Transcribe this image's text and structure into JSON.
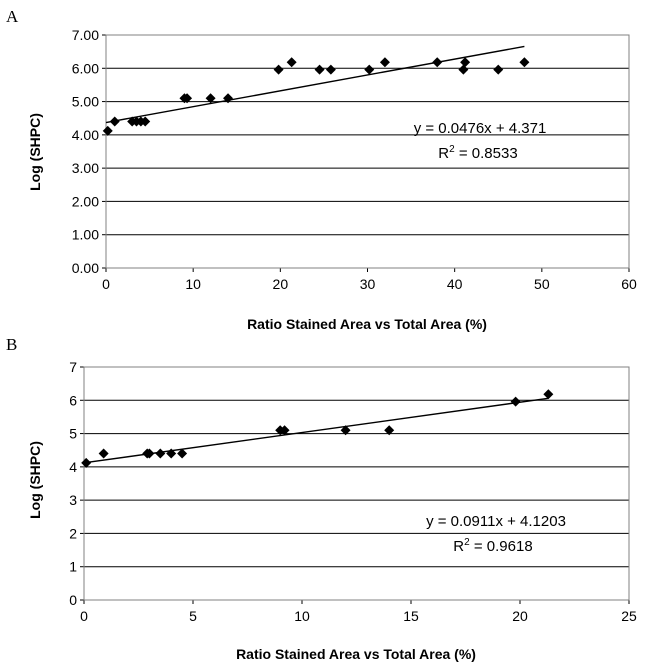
{
  "chart_data": [
    {
      "type": "scatter",
      "panel_label": "A",
      "xlabel": "Ratio Stained Area vs Total Area (%)",
      "ylabel": "Log (SHPC)",
      "xlim": [
        0,
        60
      ],
      "ylim": [
        0,
        7
      ],
      "x_ticks": [
        "0",
        "10",
        "20",
        "30",
        "40",
        "50",
        "60"
      ],
      "y_ticks": [
        "0.00",
        "1.00",
        "2.00",
        "3.00",
        "4.00",
        "5.00",
        "6.00",
        "7.00"
      ],
      "grid": "horizontal",
      "points": [
        [
          0.2,
          4.12
        ],
        [
          1.0,
          4.4
        ],
        [
          3.0,
          4.4
        ],
        [
          3.5,
          4.4
        ],
        [
          4.0,
          4.4
        ],
        [
          4.5,
          4.4
        ],
        [
          9.0,
          5.1
        ],
        [
          9.3,
          5.1
        ],
        [
          12.0,
          5.1
        ],
        [
          14.0,
          5.1
        ],
        [
          19.8,
          5.96
        ],
        [
          21.3,
          6.18
        ],
        [
          24.5,
          5.96
        ],
        [
          25.8,
          5.96
        ],
        [
          30.2,
          5.96
        ],
        [
          32.0,
          6.18
        ],
        [
          38.0,
          6.18
        ],
        [
          41.0,
          5.96
        ],
        [
          41.2,
          6.18
        ],
        [
          45.0,
          5.96
        ],
        [
          48.0,
          6.18
        ]
      ],
      "trendline": {
        "slope": 0.0476,
        "intercept": 4.371,
        "x_range": [
          0,
          48
        ]
      },
      "equation": "y = 0.0476x + 4.371",
      "r2_prefix": "R",
      "r2_exp": "2",
      "r2_value": " = 0.8533"
    },
    {
      "type": "scatter",
      "panel_label": "B",
      "xlabel": "Ratio Stained Area vs Total Area (%)",
      "ylabel": "Log (SHPC)",
      "xlim": [
        0,
        25
      ],
      "ylim": [
        0,
        7
      ],
      "x_ticks": [
        "0",
        "5",
        "10",
        "15",
        "20",
        "25"
      ],
      "y_ticks": [
        "0",
        "1",
        "2",
        "3",
        "4",
        "5",
        "6",
        "7"
      ],
      "grid": "horizontal",
      "points": [
        [
          0.1,
          4.12
        ],
        [
          0.9,
          4.4
        ],
        [
          2.9,
          4.4
        ],
        [
          3.0,
          4.4
        ],
        [
          3.5,
          4.4
        ],
        [
          4.0,
          4.4
        ],
        [
          4.5,
          4.4
        ],
        [
          9.0,
          5.1
        ],
        [
          9.2,
          5.1
        ],
        [
          12.0,
          5.1
        ],
        [
          14.0,
          5.1
        ],
        [
          19.8,
          5.96
        ],
        [
          21.3,
          6.18
        ]
      ],
      "trendline": {
        "slope": 0.0911,
        "intercept": 4.1203,
        "x_range": [
          0,
          21.3
        ]
      },
      "equation": "y = 0.0911x + 4.1203",
      "r2_prefix": "R",
      "r2_exp": "2",
      "r2_value": " = 0.9618"
    }
  ]
}
